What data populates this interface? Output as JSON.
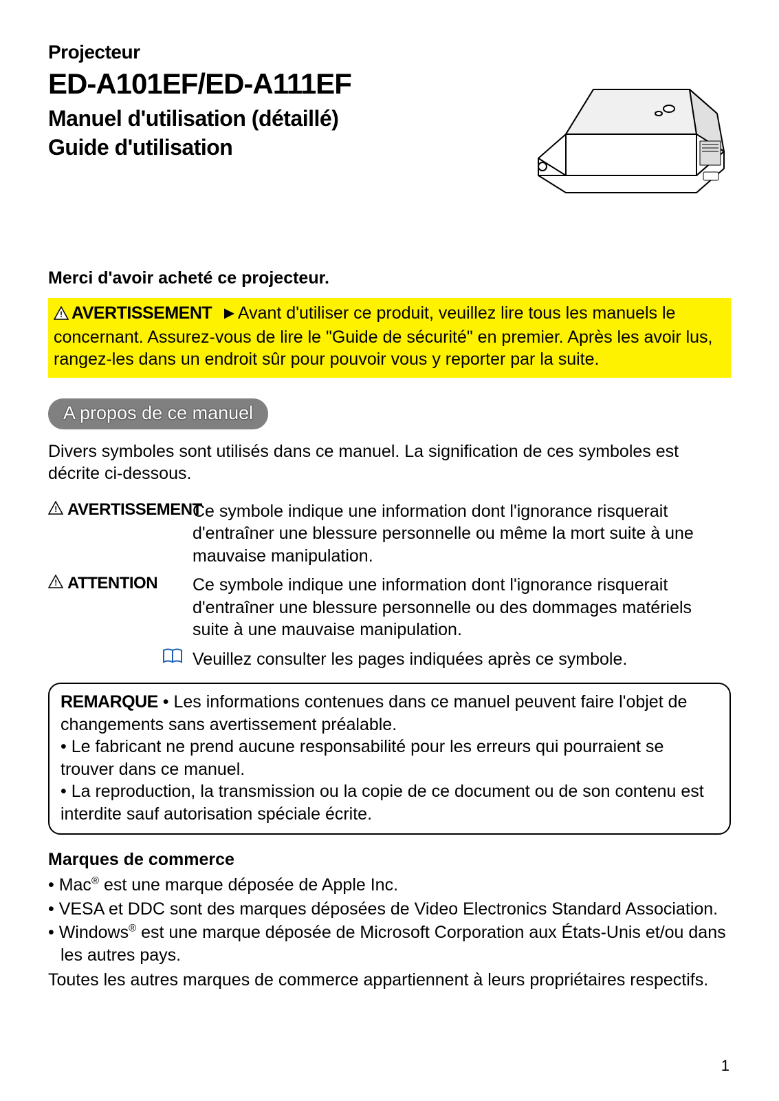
{
  "colors": {
    "page_bg": "#ffffff",
    "text": "#000000",
    "warning_bg": "#fff200",
    "pill_bg": "#808080",
    "pill_text": "#ffffff",
    "triangle_stroke": "#000000",
    "triangle_fill": "#ffffff",
    "book_icon": "#1a5fb4"
  },
  "header": {
    "category": "Projecteur",
    "model": "ED-A101EF/ED-A111EF",
    "subtitle_line1": "Manuel d'utilisation (détaillé)",
    "subtitle_line2": "Guide d'utilisation"
  },
  "thanks": "Merci d'avoir acheté ce projecteur.",
  "warning_box": {
    "label": "AVERTISSEMENT",
    "arrow": "►",
    "text": "Avant d'utiliser ce produit, veuillez lire tous les manuels le concernant. Assurez-vous de lire le \"Guide de sécurité\" en premier. Après les avoir lus, rangez-les dans un endroit sûr pour pouvoir vous y reporter par la suite."
  },
  "section_pill": "A propos de ce manuel",
  "intro": "Divers symboles sont utilisés dans ce manuel. La signification de ces symboles est décrite ci-dessous.",
  "symbols": {
    "avertissement": {
      "label": "AVERTISSEMENT",
      "desc": "Ce symbole indique une information dont l'ignorance risquerait d'entraîner une blessure personnelle ou même la mort suite à une mauvaise manipulation."
    },
    "attention": {
      "label": "ATTENTION",
      "desc": "Ce symbole indique une information dont l'ignorance risquerait d'entraîner une blessure personnelle ou des dommages matériels suite à une mauvaise manipulation."
    },
    "book": {
      "desc": "Veuillez consulter les pages indiquées après ce symbole."
    }
  },
  "remark": {
    "label": "REMARQUE",
    "item1": "• Les informations contenues dans ce manuel peuvent faire l'objet de changements sans avertissement préalable.",
    "item2": "• Le fabricant ne prend aucune responsabilité pour les erreurs qui pourraient se trouver dans ce manuel.",
    "item3": "• La reproduction, la transmission ou la copie de ce document ou de son contenu est interdite sauf autorisation spéciale écrite."
  },
  "trademarks": {
    "title": "Marques de commerce",
    "items": [
      "• Mac® est une marque déposée de Apple Inc.",
      "• VESA et DDC sont des marques déposées de Video Electronics Standard Association.",
      "• Windows® est une marque déposée de Microsoft Corporation aux États-Unis et/ou dans les autres pays."
    ],
    "footer": "Toutes les autres marques de commerce appartiennent à leurs propriétaires respectifs."
  },
  "page_number": "1"
}
